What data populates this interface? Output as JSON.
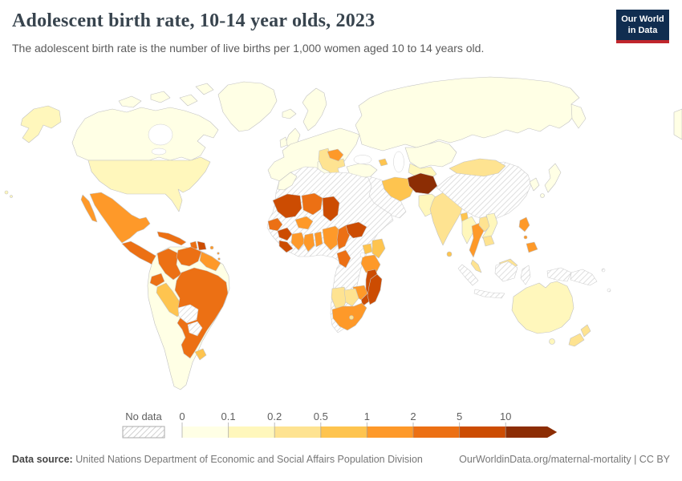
{
  "header": {
    "title": "Adolescent birth rate, 10-14 year olds, 2023",
    "subtitle": "The adolescent birth rate is the number of live births per 1,000 women aged 10 to 14 years old."
  },
  "logo": {
    "line1": "Our World",
    "line2": "in Data",
    "bg_color": "#102d50",
    "accent_color": "#c0262c"
  },
  "legend": {
    "no_data_label": "No data",
    "ticks": [
      "0",
      "0.1",
      "0.2",
      "0.5",
      "1",
      "2",
      "5",
      "10"
    ]
  },
  "footer": {
    "source_label": "Data source:",
    "source": "United Nations Department of Economic and Social Affairs Population Division",
    "link": "OurWorldinData.org/maternal-mortality | CC BY"
  },
  "chart_data": {
    "type": "choropleth-map",
    "title": "Adolescent birth rate, 10-14 year olds, 2023",
    "year": "2023",
    "unit": "live births per 1,000 women aged 10 to 14 years old",
    "legend_position": "bottom",
    "no_data_style": "diagonal-hatch",
    "bins": [
      {
        "label": "0–0.1",
        "color": "#ffffe5"
      },
      {
        "label": "0.1–0.2",
        "color": "#fff7bc"
      },
      {
        "label": "0.2–0.5",
        "color": "#fee391"
      },
      {
        "label": "0.5–1",
        "color": "#fec44f"
      },
      {
        "label": "1–2",
        "color": "#fe9929"
      },
      {
        "label": "2–5",
        "color": "#ec7014"
      },
      {
        "label": "5–10",
        "color": "#cc4c02"
      },
      {
        "label": "10+",
        "color": "#8c2d04"
      }
    ],
    "countries": {
      "Canada": "0–0.1",
      "Greenland": "0–0.1",
      "United States": "0.1–0.2",
      "Mexico": "1–2",
      "Central America": "2–5",
      "Cuba": "2–5",
      "Jamaica": "2–5",
      "Haiti": "2–5",
      "Dominican Republic": "5–10",
      "Puerto Rico": "1–2",
      "Lesser Antilles": "1–2",
      "Colombia": "2–5",
      "Venezuela": "2–5",
      "Guyana & Suriname": "1–2",
      "Ecuador": "2–5",
      "Peru": "0.5–1",
      "Brazil": "2–5",
      "Bolivia": "No data",
      "Paraguay": "No data",
      "Uruguay": "0.5–1",
      "Argentina & Chile": "0–0.1",
      "Iceland": "0–0.1",
      "United Kingdom & Ireland": "0–0.1",
      "Scandinavia": "0–0.1",
      "Europe (most countries)": "0–0.1",
      "Hungary & Balkans": "0.2–0.5",
      "Romania": "1–2",
      "Russia": "0–0.1",
      "Kazakhstan & Central Asia": "0–0.1",
      "Turkmenistan & Uzbekistan": "0.1–0.2",
      "Turkey": "0–0.1",
      "Azerbaijan": "0.5–1",
      "Middle East": "No data",
      "Iran": "0.5–1",
      "Afghanistan": "10+",
      "Pakistan": "0.1–0.2",
      "India": "0.2–0.5",
      "Bangladesh": "0.5–1",
      "Sri Lanka": "0.5–1",
      "China": "No data",
      "Mongolia": "0.2–0.5",
      "Korea": "0–0.1",
      "Japan": "0–0.1",
      "Myanmar": "0.1–0.2",
      "Thailand": "1–2",
      "Laos": "0.2–0.5",
      "Vietnam": "0.1–0.2",
      "Cambodia": "0.2–0.5",
      "Malaysia": "0.2–0.5",
      "Indonesia": "No data",
      "Philippines": "1–2",
      "Papua New Guinea": "No data",
      "Melanesia": "No data",
      "Australia": "0.1–0.2",
      "New Zealand": "0.2–0.5",
      "North & Northeast Africa": "No data",
      "Morocco": "0–0.1",
      "Mali": "5–10",
      "Niger": "2–5",
      "Chad": "5–10",
      "Senegal & Gambia": "2–5",
      "Guinea": "5–10",
      "Sierra Leone & Liberia": "5–10",
      "Côte d'Ivoire": "1–2",
      "Ghana": "1–2",
      "Togo & Benin": "1–2",
      "Burkina Faso": "1–2",
      "Nigeria": "1–2",
      "Cameroon": "2–5",
      "Central African Republic": "5–10",
      "Gabon & Congo": "2–5",
      "Uganda": "0.5–1",
      "Kenya": "0.5–1",
      "Tanzania": "1–2",
      "Malawi": "2–5",
      "Mozambique": "5–10",
      "Zimbabwe": "1–2",
      "Namibia": "0.2–0.5",
      "Botswana": "0.2–0.5",
      "South Africa": "1–2",
      "Lesotho": "0.2–0.5",
      "Madagascar": "5–10"
    }
  }
}
